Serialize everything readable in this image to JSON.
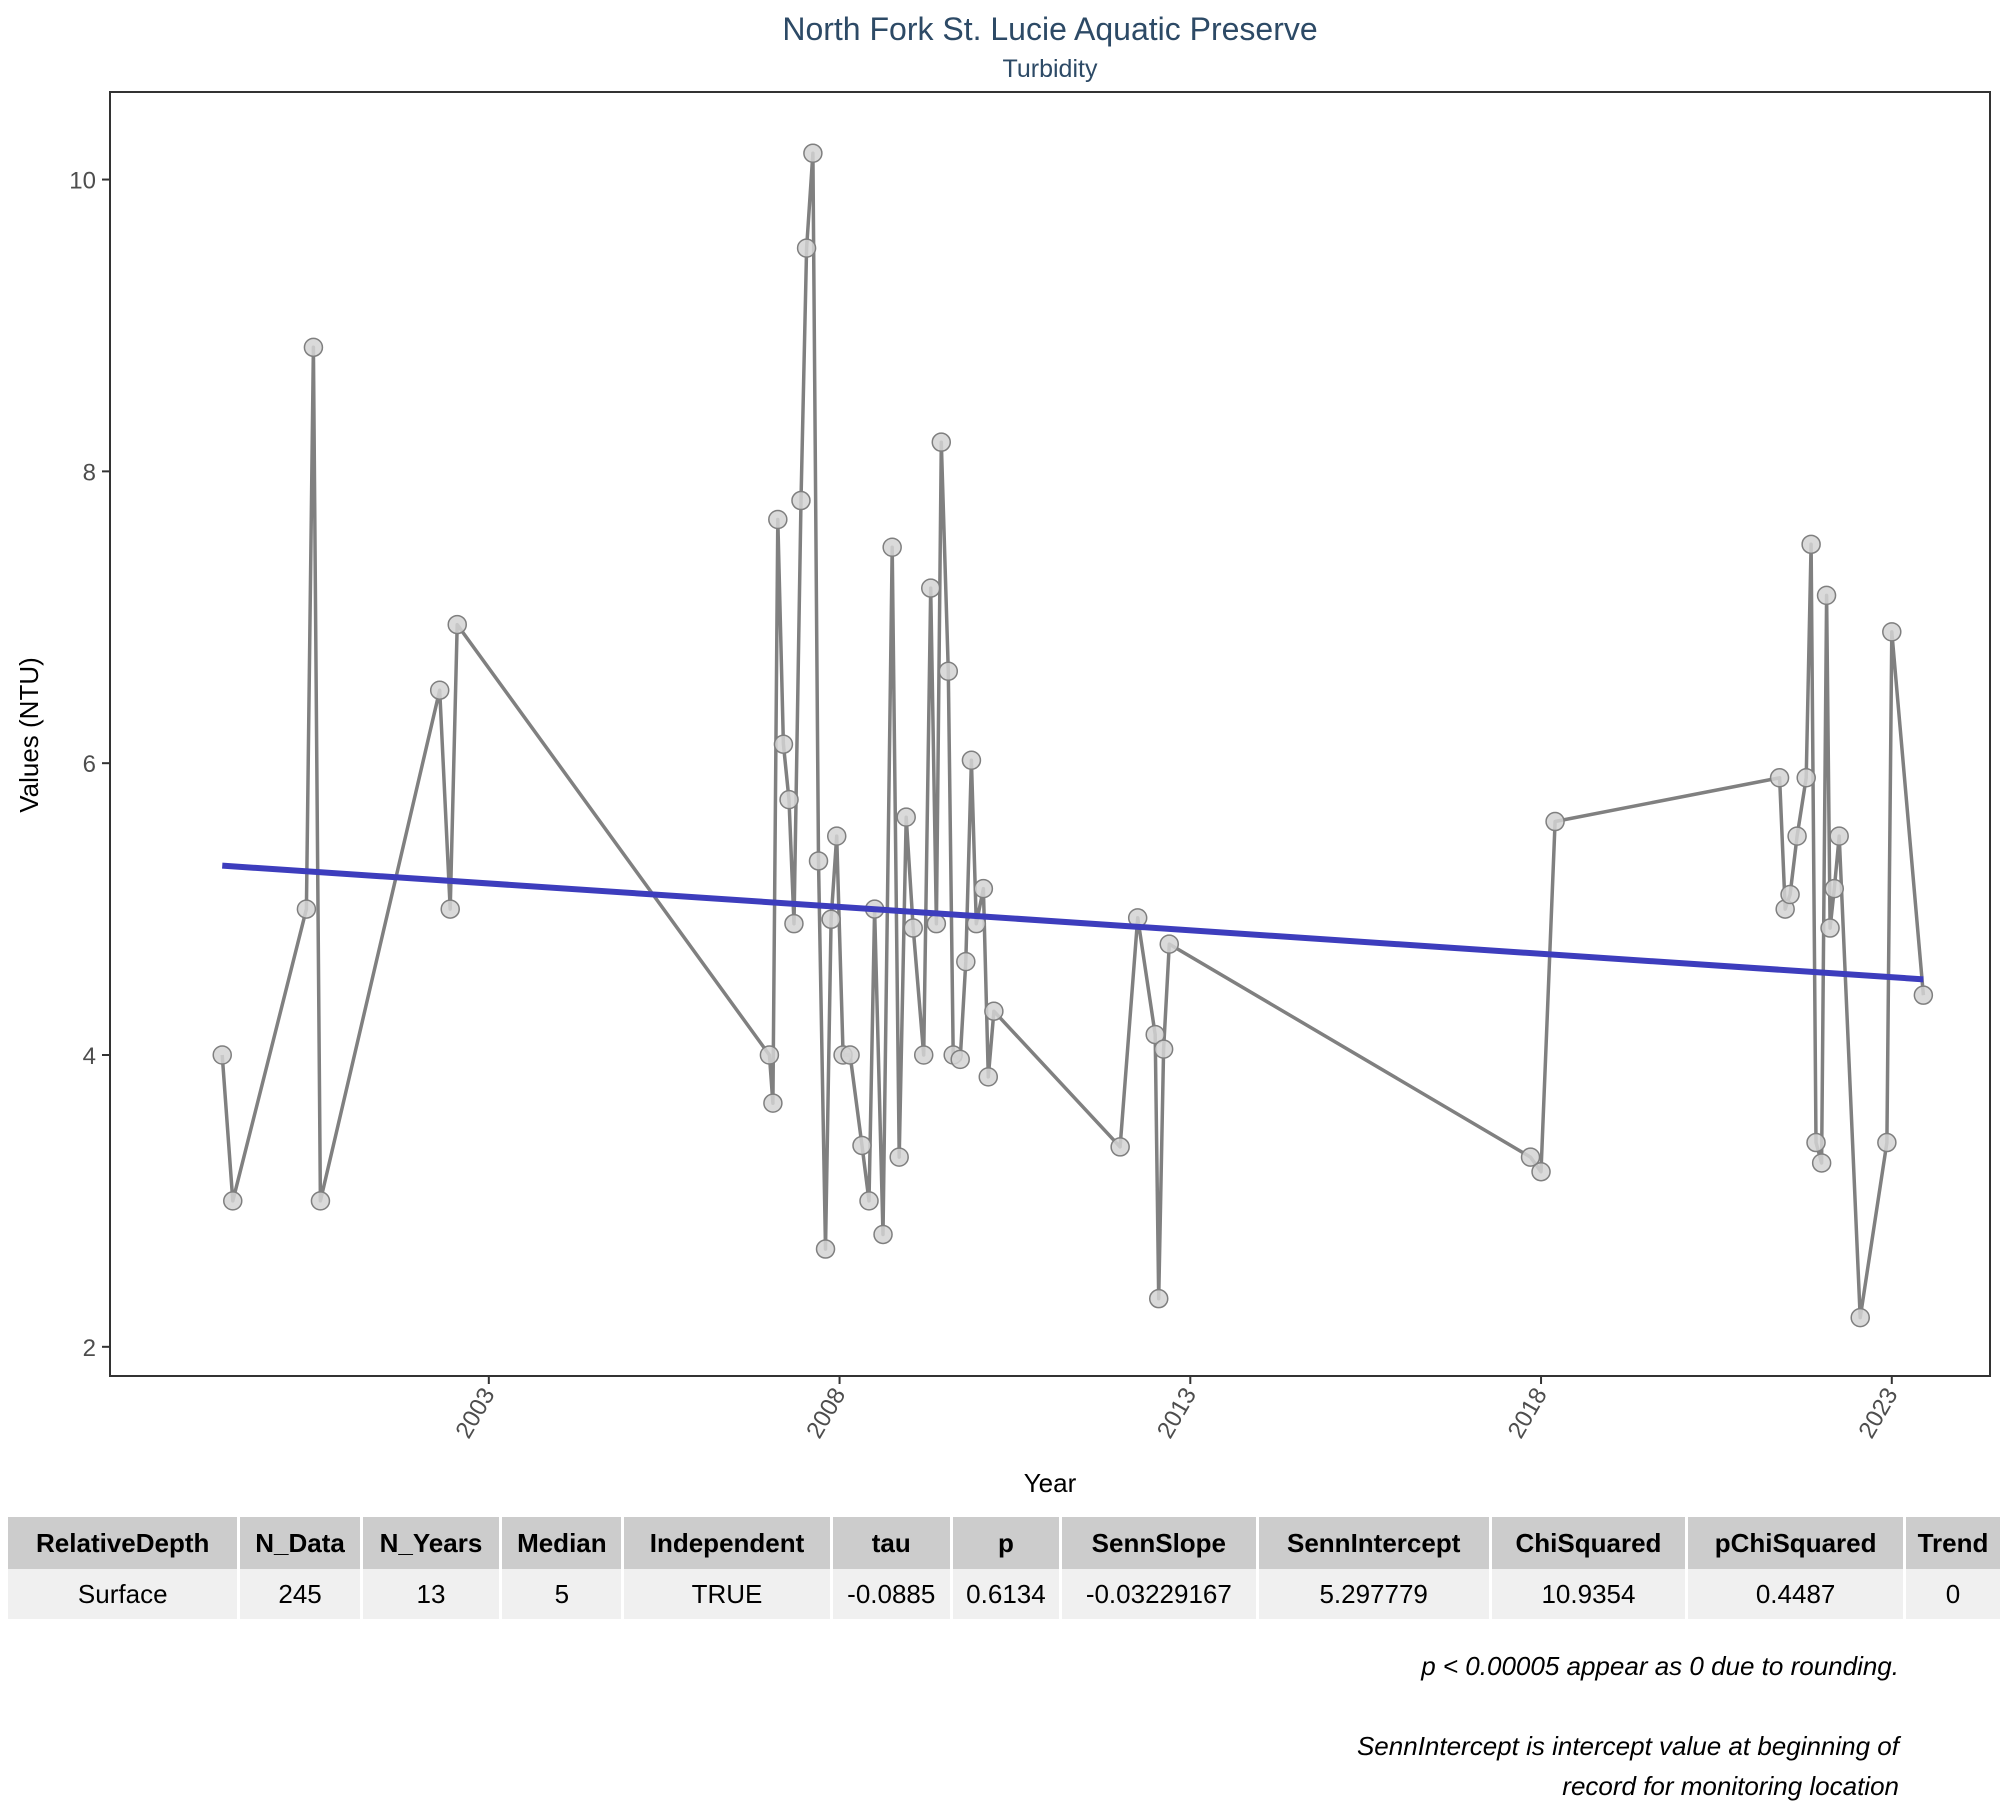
{
  "chart_data": {
    "type": "line",
    "title": "North Fork St. Lucie Aquatic Preserve",
    "subtitle": "Turbidity",
    "xlabel": "Year",
    "ylabel": "Values (NTU)",
    "xlim": [
      1997.6,
      2024.4
    ],
    "ylim": [
      1.8,
      10.6
    ],
    "x_ticks": [
      2003,
      2008,
      2013,
      2018,
      2023
    ],
    "y_ticks": [
      2,
      4,
      6,
      8,
      10
    ],
    "grid": false,
    "colors": {
      "points": "#d3d3d3",
      "point_stroke": "#7f7f7f",
      "line": "#808080",
      "trend": "#3d3dbd"
    },
    "series": [
      {
        "type": "line+points",
        "x": [
          1999.2,
          1999.35,
          2000.4,
          2000.5,
          2000.6,
          2002.3,
          2002.45,
          2002.55,
          2007.0,
          2007.05,
          2007.12,
          2007.2,
          2007.28,
          2007.35,
          2007.45,
          2007.53,
          2007.62,
          2007.7,
          2007.8,
          2007.88,
          2007.96,
          2008.05,
          2008.15,
          2008.32,
          2008.42,
          2008.5,
          2008.62,
          2008.75,
          2008.85,
          2008.95,
          2009.05,
          2009.2,
          2009.3,
          2009.38,
          2009.45,
          2009.55,
          2009.62,
          2009.72,
          2009.8,
          2009.88,
          2009.95,
          2010.05,
          2010.12,
          2010.2,
          2012.0,
          2012.25,
          2012.5,
          2012.55,
          2012.62,
          2012.7,
          2017.85,
          2018.0,
          2018.2,
          2021.4,
          2021.48,
          2021.55,
          2021.65,
          2021.78,
          2021.85,
          2021.92,
          2022.0,
          2022.07,
          2022.12,
          2022.18,
          2022.25,
          2022.55,
          2022.93,
          2023.0,
          2023.45
        ],
        "y": [
          4.0,
          3.0,
          5.0,
          8.85,
          3.0,
          6.5,
          5.0,
          6.95,
          4.0,
          3.67,
          7.67,
          6.13,
          5.75,
          4.9,
          7.8,
          9.53,
          10.18,
          5.33,
          2.67,
          4.93,
          5.5,
          4.0,
          4.0,
          3.38,
          3.0,
          5.0,
          2.77,
          7.48,
          3.3,
          5.63,
          4.87,
          4.0,
          7.2,
          4.9,
          8.2,
          6.63,
          4.0,
          3.97,
          4.64,
          6.02,
          4.9,
          5.14,
          3.85,
          4.3,
          3.37,
          4.94,
          4.14,
          2.33,
          4.04,
          4.76,
          3.3,
          3.2,
          5.6,
          5.9,
          5.0,
          5.1,
          5.5,
          5.9,
          7.5,
          3.4,
          3.26,
          7.15,
          4.87,
          5.14,
          5.5,
          2.2,
          3.4,
          6.9,
          4.41
        ]
      },
      {
        "name": "SennSlope",
        "type": "trend-line",
        "x": [
          1999.2,
          2023.45
        ],
        "y": [
          5.297779,
          4.5186
        ]
      }
    ]
  },
  "table": {
    "headers": [
      "RelativeDepth",
      "N_Data",
      "N_Years",
      "Median",
      "Independent",
      "tau",
      "p",
      "SennSlope",
      "SennIntercept",
      "ChiSquared",
      "pChiSquared",
      "Trend"
    ],
    "rows": [
      [
        "Surface",
        "245",
        "13",
        "5",
        "TRUE",
        "-0.0885",
        "0.6134",
        "-0.03229167",
        "5.297779",
        "10.9354",
        "0.4487",
        "0"
      ]
    ]
  },
  "notes": {
    "rounding": "p < 0.00005 appear as 0 due to rounding.",
    "intercept_line1": "SennIntercept is intercept value at beginning of",
    "intercept_line2": "record for monitoring location"
  }
}
